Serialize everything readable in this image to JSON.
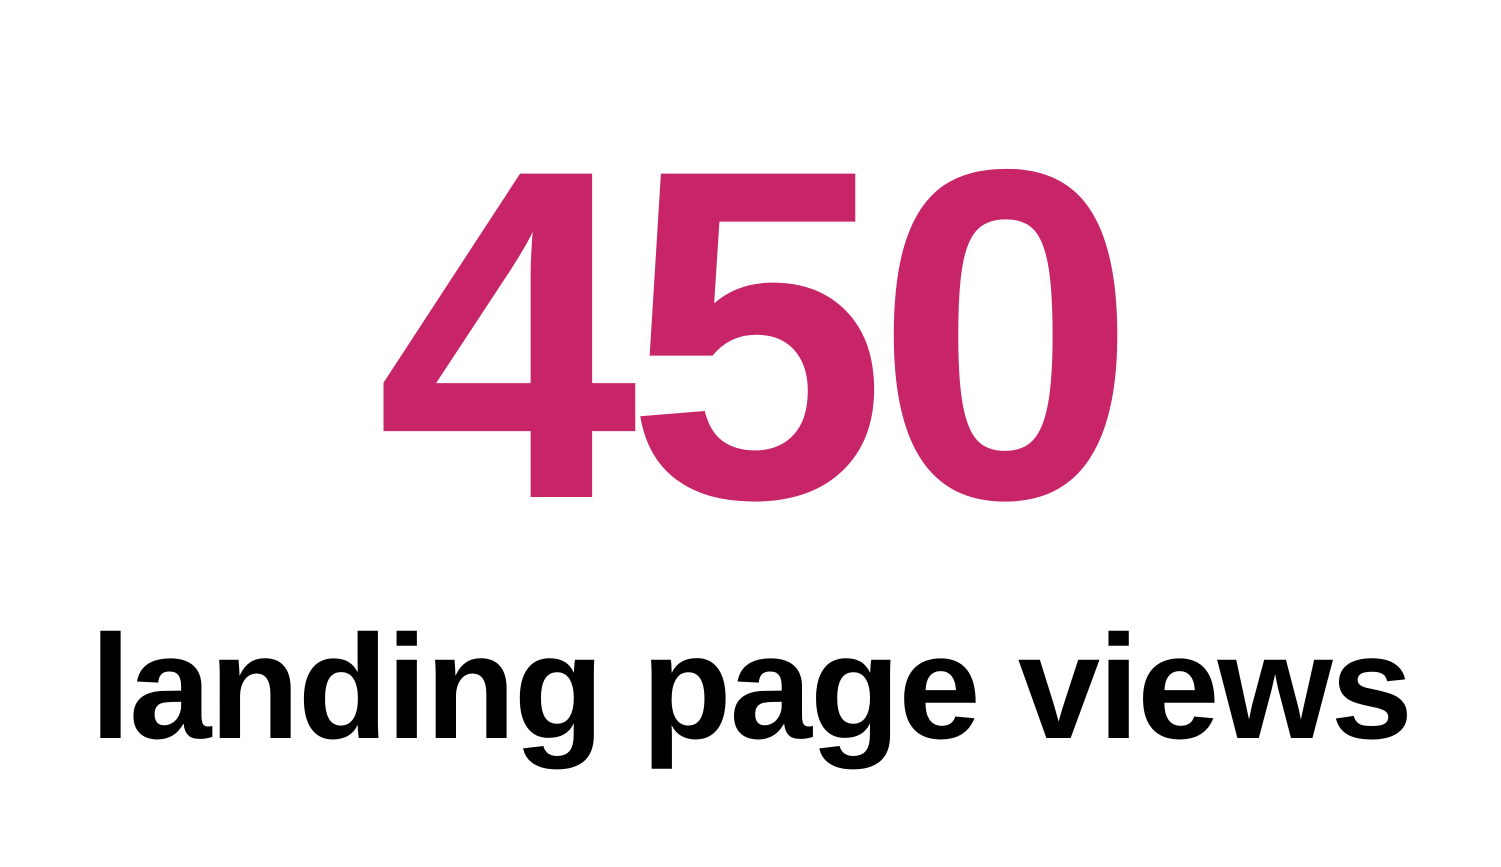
{
  "stat": {
    "value": "450",
    "label": "landing page views",
    "value_color": "#C72567",
    "label_color": "#000000"
  }
}
